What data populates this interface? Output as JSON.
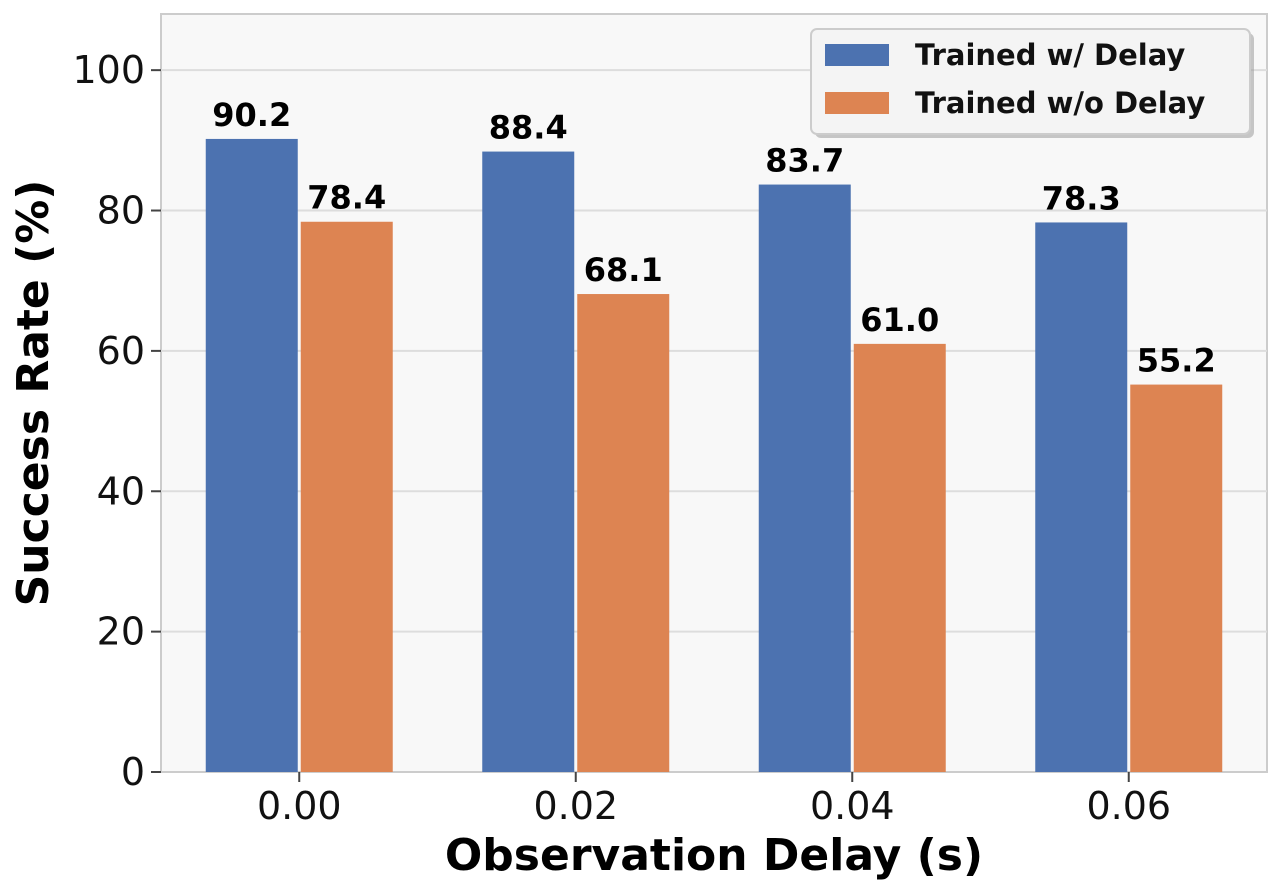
{
  "chart_data": {
    "type": "bar",
    "title": "",
    "xlabel": "Observation Delay (s)",
    "ylabel": "Success Rate (%)",
    "categories": [
      "0.00",
      "0.02",
      "0.04",
      "0.06"
    ],
    "series": [
      {
        "name": "Trained w/ Delay",
        "color": "#4c72b0",
        "values": [
          90.2,
          88.4,
          83.7,
          78.3
        ]
      },
      {
        "name": "Trained w/o Delay",
        "color": "#dd8452",
        "values": [
          78.4,
          68.1,
          61.0,
          55.2
        ]
      }
    ],
    "data_labels": [
      [
        "90.2",
        "88.4",
        "83.7",
        "78.3"
      ],
      [
        "78.4",
        "68.1",
        "61.0",
        "55.2"
      ]
    ],
    "ylim": [
      0,
      108
    ],
    "yticks": [
      0,
      20,
      40,
      60,
      80,
      100
    ],
    "grid": true,
    "legend_position": "top-right"
  }
}
